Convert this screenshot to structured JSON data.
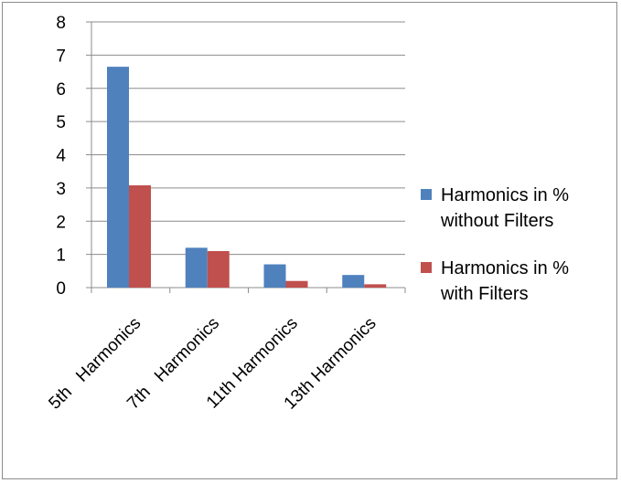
{
  "chart_data": {
    "type": "bar",
    "categories": [
      "5th   Harmonics",
      "7th   Harmonics",
      "11th Harmonics",
      "13th Harmonics"
    ],
    "series": [
      {
        "name_lines": [
          "Harmonics in %",
          "without Filters"
        ],
        "values": [
          6.65,
          1.2,
          0.7,
          0.38
        ],
        "color": "#4F81BD"
      },
      {
        "name_lines": [
          "Harmonics in %",
          "with Filters"
        ],
        "values": [
          3.08,
          1.1,
          0.2,
          0.1
        ],
        "color": "#C0504D"
      }
    ],
    "ylim": [
      0,
      8
    ],
    "yticks": [
      "0",
      "1",
      "2",
      "3",
      "4",
      "5",
      "6",
      "7",
      "8"
    ],
    "grid": true,
    "legend_position": "right"
  }
}
